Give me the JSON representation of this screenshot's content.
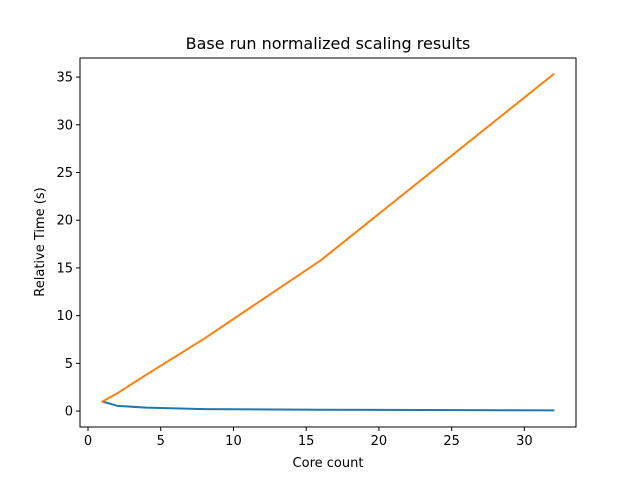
{
  "chart_data": {
    "type": "line",
    "title": "Base run normalized scaling results",
    "xlabel": "Core count",
    "ylabel": "Relative Time  (s)",
    "xlim": [
      -0.55,
      33.55
    ],
    "ylim": [
      -1.67,
      37.0
    ],
    "xticks": [
      0,
      5,
      10,
      15,
      20,
      25,
      30
    ],
    "yticks": [
      0,
      5,
      10,
      15,
      20,
      25,
      30,
      35
    ],
    "grid": false,
    "legend": "none",
    "series": [
      {
        "color": "#1f77b4",
        "x": [
          1,
          2,
          4,
          8,
          16,
          32
        ],
        "y": [
          1.0,
          0.55,
          0.36,
          0.2,
          0.14,
          0.07
        ]
      },
      {
        "color": "#ff7f0e",
        "x": [
          1,
          2,
          4,
          8,
          16,
          32
        ],
        "y": [
          1.0,
          1.85,
          3.8,
          7.6,
          15.8,
          35.3
        ]
      }
    ]
  }
}
